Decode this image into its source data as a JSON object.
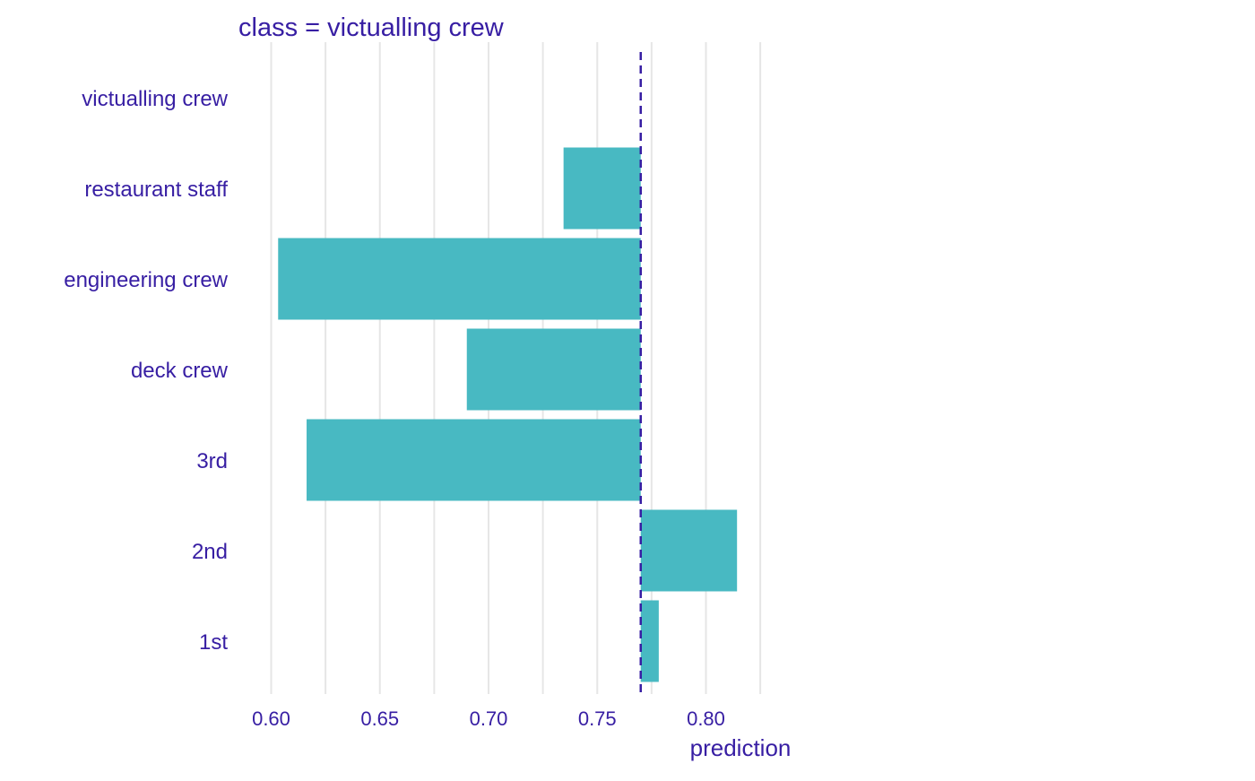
{
  "chart_data": {
    "type": "bar",
    "orientation": "horizontal",
    "title": "class = victualling crew",
    "xlabel": "prediction",
    "ylabel": "",
    "xlim": [
      0.5935,
      0.8143
    ],
    "xticks": [
      0.6,
      0.65,
      0.7,
      0.75,
      0.8
    ],
    "xtick_labels": [
      "0.60",
      "0.65",
      "0.70",
      "0.75",
      "0.80"
    ],
    "baseline": 0.77,
    "grid": true,
    "legend": "none",
    "categories": [
      "victualling crew",
      "restaurant staff",
      "engineering crew",
      "deck crew",
      "3rd",
      "2nd",
      "1st"
    ],
    "values": [
      0.77,
      0.7345,
      0.6032,
      0.69,
      0.6163,
      0.8143,
      0.7783
    ],
    "colors": {
      "bar": "#48b9c2",
      "text": "#371ea3",
      "grid": "#e6e6e6",
      "baseline": "#371ea3"
    }
  }
}
